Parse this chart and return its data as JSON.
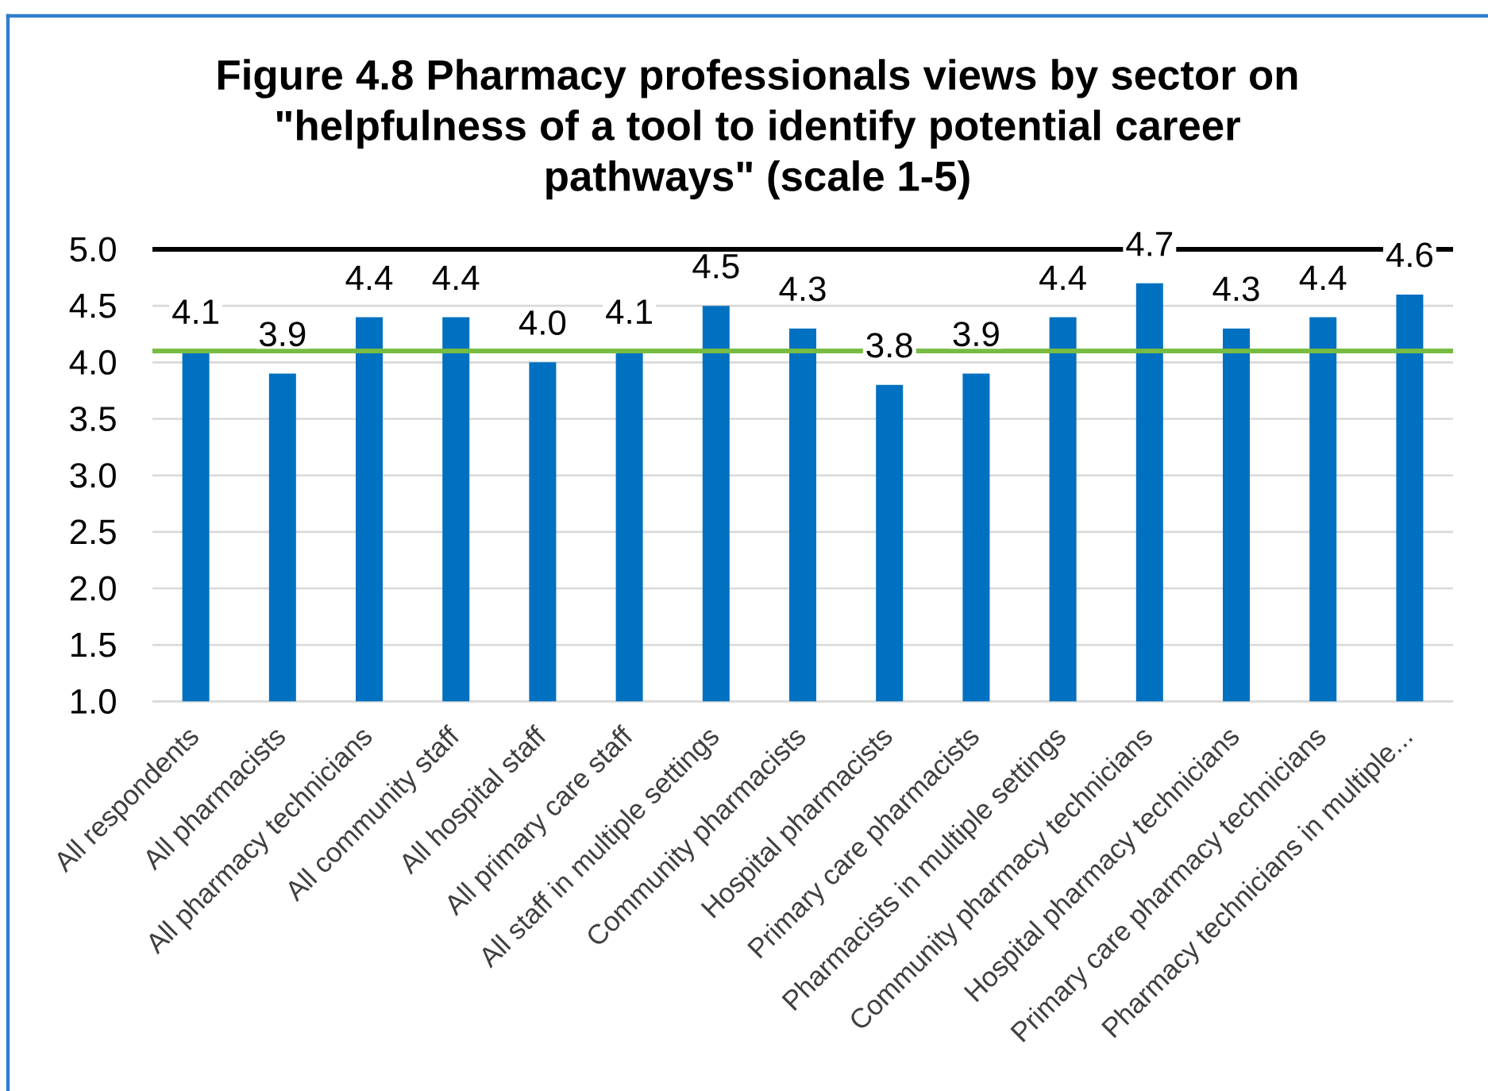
{
  "chart_data": {
    "type": "bar",
    "title": "Figure 4.8 Pharmacy professionals views by sector on \"helpfulness of a tool to identify potential career pathways\" (scale 1-5)",
    "categories": [
      "All respondents",
      "All pharmacists",
      "All pharmacy technicians",
      "All community staff",
      "All hospital staff",
      "All primary care staff",
      "All staff in multiple settings",
      "Community pharmacists",
      "Hospital pharmacists",
      "Primary care pharmacists",
      "Pharmacists in multiple settings",
      "Community pharmacy technicians",
      "Hospital pharmacy technicians",
      "Primary care pharmacy technicians",
      "Pharmacy technicians in multiple..."
    ],
    "values": [
      4.1,
      3.9,
      4.4,
      4.4,
      4.0,
      4.1,
      4.5,
      4.3,
      3.8,
      3.9,
      4.4,
      4.7,
      4.3,
      4.4,
      4.6
    ],
    "value_labels": [
      "4.1",
      "3.9",
      "4.4",
      "4.4",
      "4.0",
      "4.1",
      "4.5",
      "4.3",
      "3.8",
      "3.9",
      "4.4",
      "4.7",
      "4.3",
      "4.4",
      "4.6"
    ],
    "color": "#0070c0",
    "ylim": [
      1.0,
      5.0
    ],
    "yticks": [
      {
        "value": 1.0,
        "label": "1.0"
      },
      {
        "value": 1.5,
        "label": "1.5"
      },
      {
        "value": 2.0,
        "label": "2.0"
      },
      {
        "value": 2.5,
        "label": "2.5"
      },
      {
        "value": 3.0,
        "label": "3.0"
      },
      {
        "value": 3.5,
        "label": "3.5"
      },
      {
        "value": 4.0,
        "label": "4.0"
      },
      {
        "value": 4.5,
        "label": "4.5"
      },
      {
        "value": 5.0,
        "label": "5.0"
      }
    ],
    "grid": "y",
    "ref_lines": [
      {
        "axis": "y",
        "value": 4.1,
        "color": "#77bc43"
      },
      {
        "axis": "y",
        "value": 5.0,
        "color": "#000000"
      }
    ]
  }
}
